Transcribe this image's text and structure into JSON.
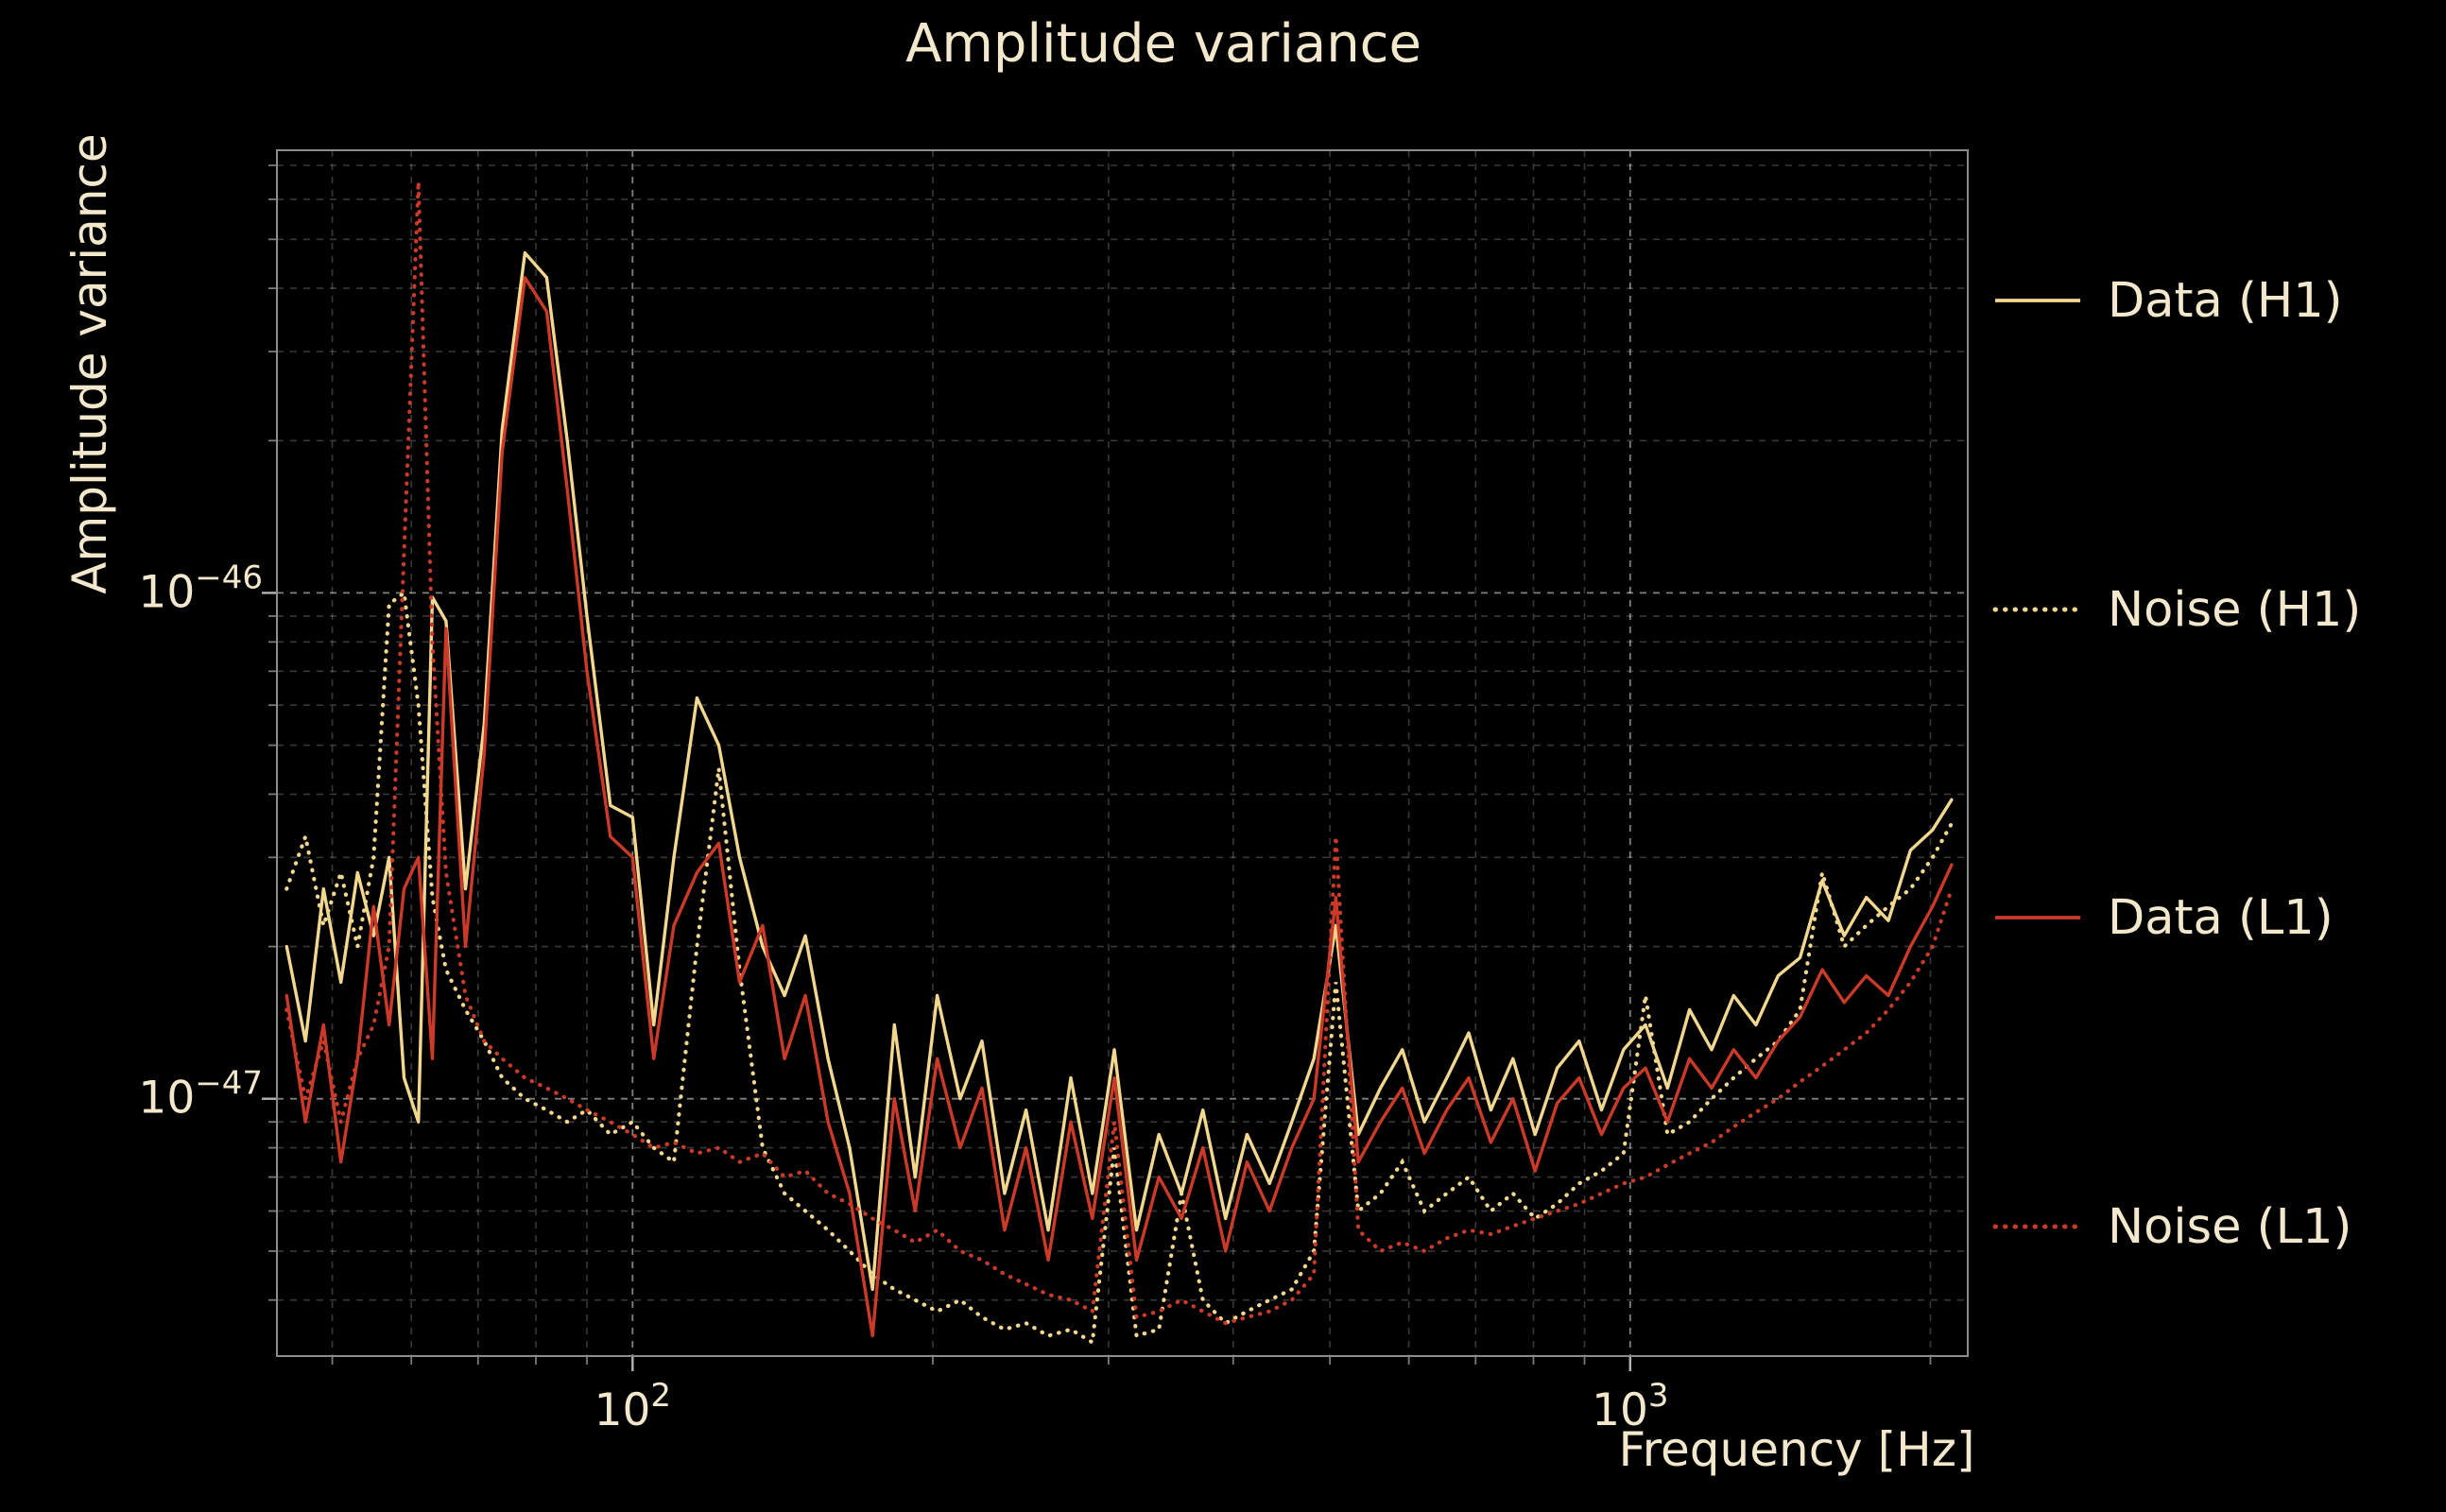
{
  "colors": {
    "background": "#000000",
    "text": "#f3e8cc",
    "grid": "#ffffff",
    "spine": "#8c8c8c",
    "tick": "#c8c8c8",
    "h1_series": "#f2d78e",
    "l1_series": "#cb3a28"
  },
  "chart_data": {
    "type": "line",
    "title": "Amplitude variance",
    "xlabel": "Frequency [Hz]",
    "ylabel": "Amplitude variance",
    "xscale": "log",
    "yscale": "log",
    "xlim": [
      44,
      2180
    ],
    "ylim": [
      3.1e-48,
      7.5e-46
    ],
    "grid": true,
    "legend_position": "right-outside",
    "x_ticks": [
      {
        "value": 100,
        "label": "10^2"
      },
      {
        "value": 1000,
        "label": "10^3"
      }
    ],
    "y_ticks": [
      {
        "value": 1e-46,
        "label": "10^-46"
      },
      {
        "value": 1e-47,
        "label": "10^-47"
      }
    ],
    "value_unit": 1e-48,
    "x": [
      45,
      47,
      49,
      51,
      53,
      55,
      57,
      59,
      61,
      63,
      65,
      68,
      71,
      74,
      78,
      82,
      86,
      90,
      95,
      100,
      105,
      110,
      116,
      122,
      128,
      135,
      142,
      149,
      157,
      165,
      174,
      183,
      192,
      202,
      213,
      224,
      236,
      248,
      261,
      275,
      289,
      304,
      320,
      337,
      355,
      373,
      393,
      413,
      435,
      458,
      482,
      507,
      534,
      562,
      591,
      622,
      655,
      689,
      725,
      763,
      803,
      845,
      889,
      936,
      985,
      1036,
      1090,
      1147,
      1207,
      1270,
      1337,
      1407,
      1480,
      1558,
      1639,
      1725,
      1815,
      1910,
      2010,
      2100
    ],
    "series": [
      {
        "name": "Data (H1)",
        "style": "solid",
        "color": "#f2d78e",
        "values": [
          20,
          13,
          26,
          17,
          28,
          21,
          30,
          11,
          9,
          98,
          88,
          26,
          55,
          210,
          470,
          420,
          200,
          90,
          38,
          36,
          14,
          30,
          62,
          50,
          30,
          20,
          16,
          21,
          12,
          8,
          4.2,
          14,
          7,
          16,
          10,
          13,
          6.5,
          9.5,
          5.5,
          11,
          6.5,
          12.5,
          5.5,
          8.5,
          6.5,
          9.5,
          5.8,
          8.5,
          6.8,
          9,
          12,
          22,
          8.5,
          10.5,
          12.5,
          9,
          11,
          13.5,
          9.5,
          12,
          8.5,
          11.5,
          13,
          9.5,
          12.5,
          14,
          10.5,
          15,
          12.5,
          16,
          14,
          17.5,
          19,
          27,
          21,
          25,
          22.5,
          31,
          34,
          39
        ]
      },
      {
        "name": "Noise (H1)",
        "style": "dotted",
        "color": "#f2d78e",
        "values": [
          26,
          33,
          22,
          28,
          20,
          30,
          95,
          100,
          60,
          25,
          18,
          15,
          13,
          11,
          10,
          9.5,
          9,
          9.5,
          8.5,
          9,
          8,
          7.5,
          20,
          45,
          18,
          8,
          6.5,
          6,
          5.5,
          5,
          4.5,
          4.2,
          4,
          3.8,
          4,
          3.7,
          3.5,
          3.6,
          3.4,
          3.5,
          3.3,
          8,
          3.4,
          3.5,
          6.5,
          4,
          3.6,
          3.8,
          4,
          4.2,
          5,
          17,
          6,
          6.5,
          7.5,
          6,
          6.5,
          7,
          6,
          6.5,
          5.8,
          6.2,
          6.8,
          7.2,
          7.8,
          16,
          8.5,
          9,
          10,
          11,
          12,
          13,
          15,
          28,
          20,
          22,
          24,
          26,
          30,
          35
        ]
      },
      {
        "name": "Data (L1)",
        "style": "solid",
        "color": "#cb3a28",
        "values": [
          16,
          9,
          14,
          7.5,
          12,
          24,
          14,
          26,
          30,
          12,
          85,
          20,
          48,
          190,
          420,
          360,
          160,
          70,
          33,
          30,
          12,
          22,
          28,
          32,
          17,
          22,
          12,
          16,
          9,
          6.5,
          3.4,
          10,
          6,
          12,
          8,
          10.5,
          5.5,
          8,
          4.8,
          9,
          5.8,
          11,
          4.8,
          7,
          5.8,
          8,
          5,
          7.5,
          6,
          8,
          10,
          25,
          7.5,
          9,
          10.5,
          7.8,
          9.5,
          11,
          8.2,
          10,
          7.2,
          9.8,
          11,
          8.5,
          10.5,
          11.5,
          9,
          12,
          10.5,
          12.5,
          11,
          13,
          14.5,
          18,
          15.5,
          17.5,
          16,
          20,
          24,
          29
        ]
      },
      {
        "name": "Noise (L1)",
        "style": "dotted",
        "color": "#cb3a28",
        "values": [
          15,
          10,
          13,
          9,
          12,
          14,
          20,
          120,
          650,
          80,
          28,
          16,
          13,
          12,
          11,
          10.5,
          10,
          9.5,
          9,
          8.5,
          8,
          8.2,
          7.8,
          8,
          7.5,
          7.8,
          7,
          7.2,
          6.5,
          6.2,
          5.8,
          5.5,
          5.2,
          5.5,
          5,
          4.8,
          4.5,
          4.3,
          4.1,
          4,
          3.8,
          9,
          3.7,
          3.8,
          4,
          3.8,
          3.6,
          3.7,
          3.8,
          4,
          4.5,
          33,
          5.5,
          5,
          5.2,
          5,
          5.3,
          5.5,
          5.4,
          5.6,
          5.8,
          6,
          6.2,
          6.5,
          6.8,
          7,
          7.4,
          7.8,
          8.2,
          8.8,
          9.4,
          10,
          10.8,
          11.6,
          12.5,
          13.5,
          15,
          17,
          20,
          26
        ]
      }
    ]
  }
}
